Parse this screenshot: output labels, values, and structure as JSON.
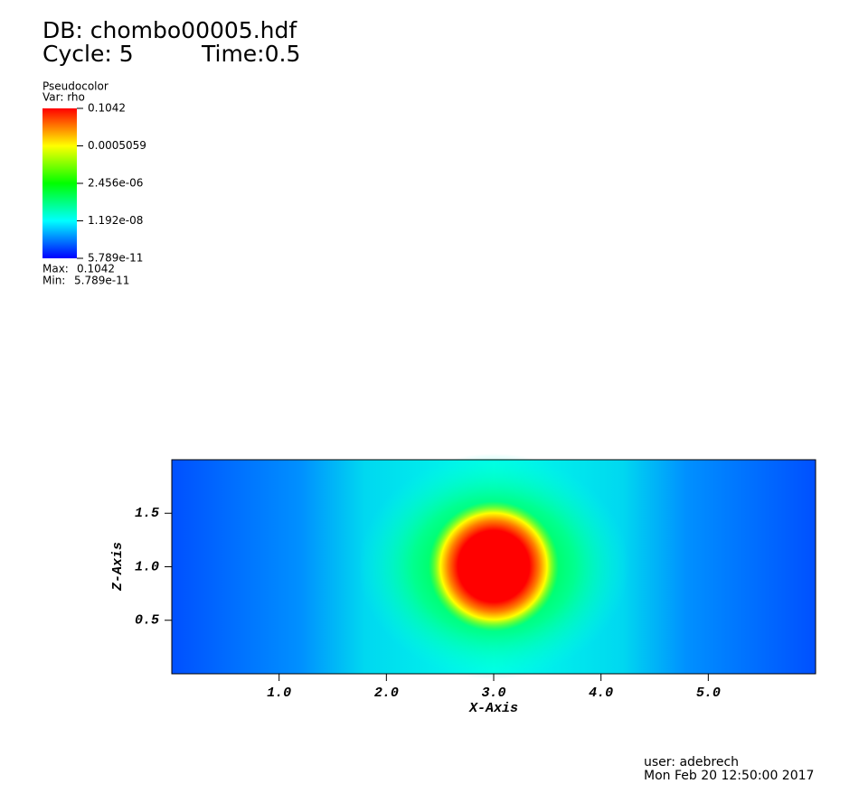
{
  "chart_data": {
    "type": "pseudocolor",
    "title": "DB: chombo00005.hdf",
    "cycle": "Cycle: 5",
    "time": "Time:0.5",
    "legend": {
      "plot": "Pseudocolor",
      "var": "Var: rho",
      "log_scale": true,
      "colors": [
        "#0000ff",
        "#00ffff",
        "#00ff00",
        "#ffff00",
        "#ff0000"
      ],
      "ticks": [
        0.1042,
        0.0005059,
        {
          "value": 2.456e-06,
          "label": "2.456e-06"
        },
        {
          "value": 1.192e-08,
          "label": "1.192e-08"
        },
        {
          "value": 5.789e-11,
          "label": "5.789e-11"
        }
      ],
      "max_label": "Max:",
      "max": 0.1042,
      "min_label": "Min:",
      "min": {
        "value": 5.789e-11,
        "label": "5.789e-11"
      }
    },
    "xlabel": "X-Axis",
    "ylabel": "Z-Axis",
    "xlim": [
      0,
      6
    ],
    "ylim": [
      0,
      2
    ],
    "xticks": [
      {
        "value": 1,
        "label": "1.0"
      },
      {
        "value": 2,
        "label": "2.0"
      },
      {
        "value": 3,
        "label": "3.0"
      },
      {
        "value": 4,
        "label": "4.0"
      },
      {
        "value": 5,
        "label": "5.0"
      }
    ],
    "yticks": [
      {
        "value": 0.5,
        "label": "0.5"
      },
      {
        "value": 1,
        "label": "1.0"
      },
      {
        "value": 1.5,
        "label": "1.5"
      }
    ],
    "footer": {
      "user": "user: adebrech",
      "date": "Mon Feb 20 12:50:00 2017"
    }
  }
}
